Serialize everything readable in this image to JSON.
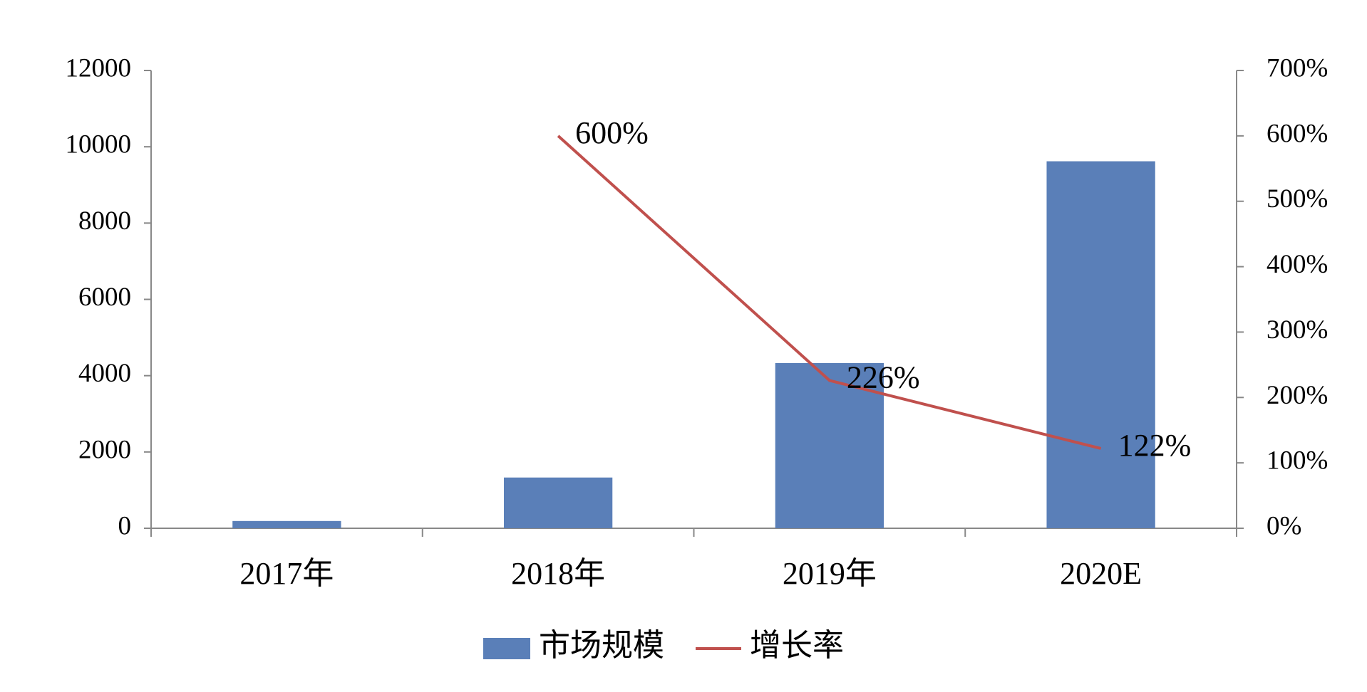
{
  "chart_data": {
    "type": "bar_line",
    "categories": [
      "2017年",
      "2018年",
      "2019年",
      "2020E"
    ],
    "series": [
      {
        "name": "市场规模",
        "color": "#5a7fb8",
        "type": "bar",
        "values": [
          190,
          1330,
          4330,
          9620
        ]
      },
      {
        "name": "增长率",
        "color": "#c0504d",
        "type": "line",
        "axis": "y2",
        "values": [
          null,
          600,
          226,
          122
        ],
        "value_labels": [
          null,
          "600%",
          "226%",
          "122%"
        ]
      }
    ],
    "ylim": [
      0,
      12000
    ],
    "yticks": [
      0,
      2000,
      4000,
      6000,
      8000,
      10000,
      12000
    ],
    "y2lim": [
      0,
      700
    ],
    "y2ticks": [
      {
        "value": 0,
        "label": "0%"
      },
      {
        "value": 100,
        "label": "100%"
      },
      {
        "value": 200,
        "label": "200%"
      },
      {
        "value": 300,
        "label": "300%"
      },
      {
        "value": 400,
        "label": "400%"
      },
      {
        "value": 500,
        "label": "500%"
      },
      {
        "value": 600,
        "label": "600%"
      },
      {
        "value": 700,
        "label": "700%"
      }
    ],
    "legend": "bottom",
    "grid": false
  }
}
